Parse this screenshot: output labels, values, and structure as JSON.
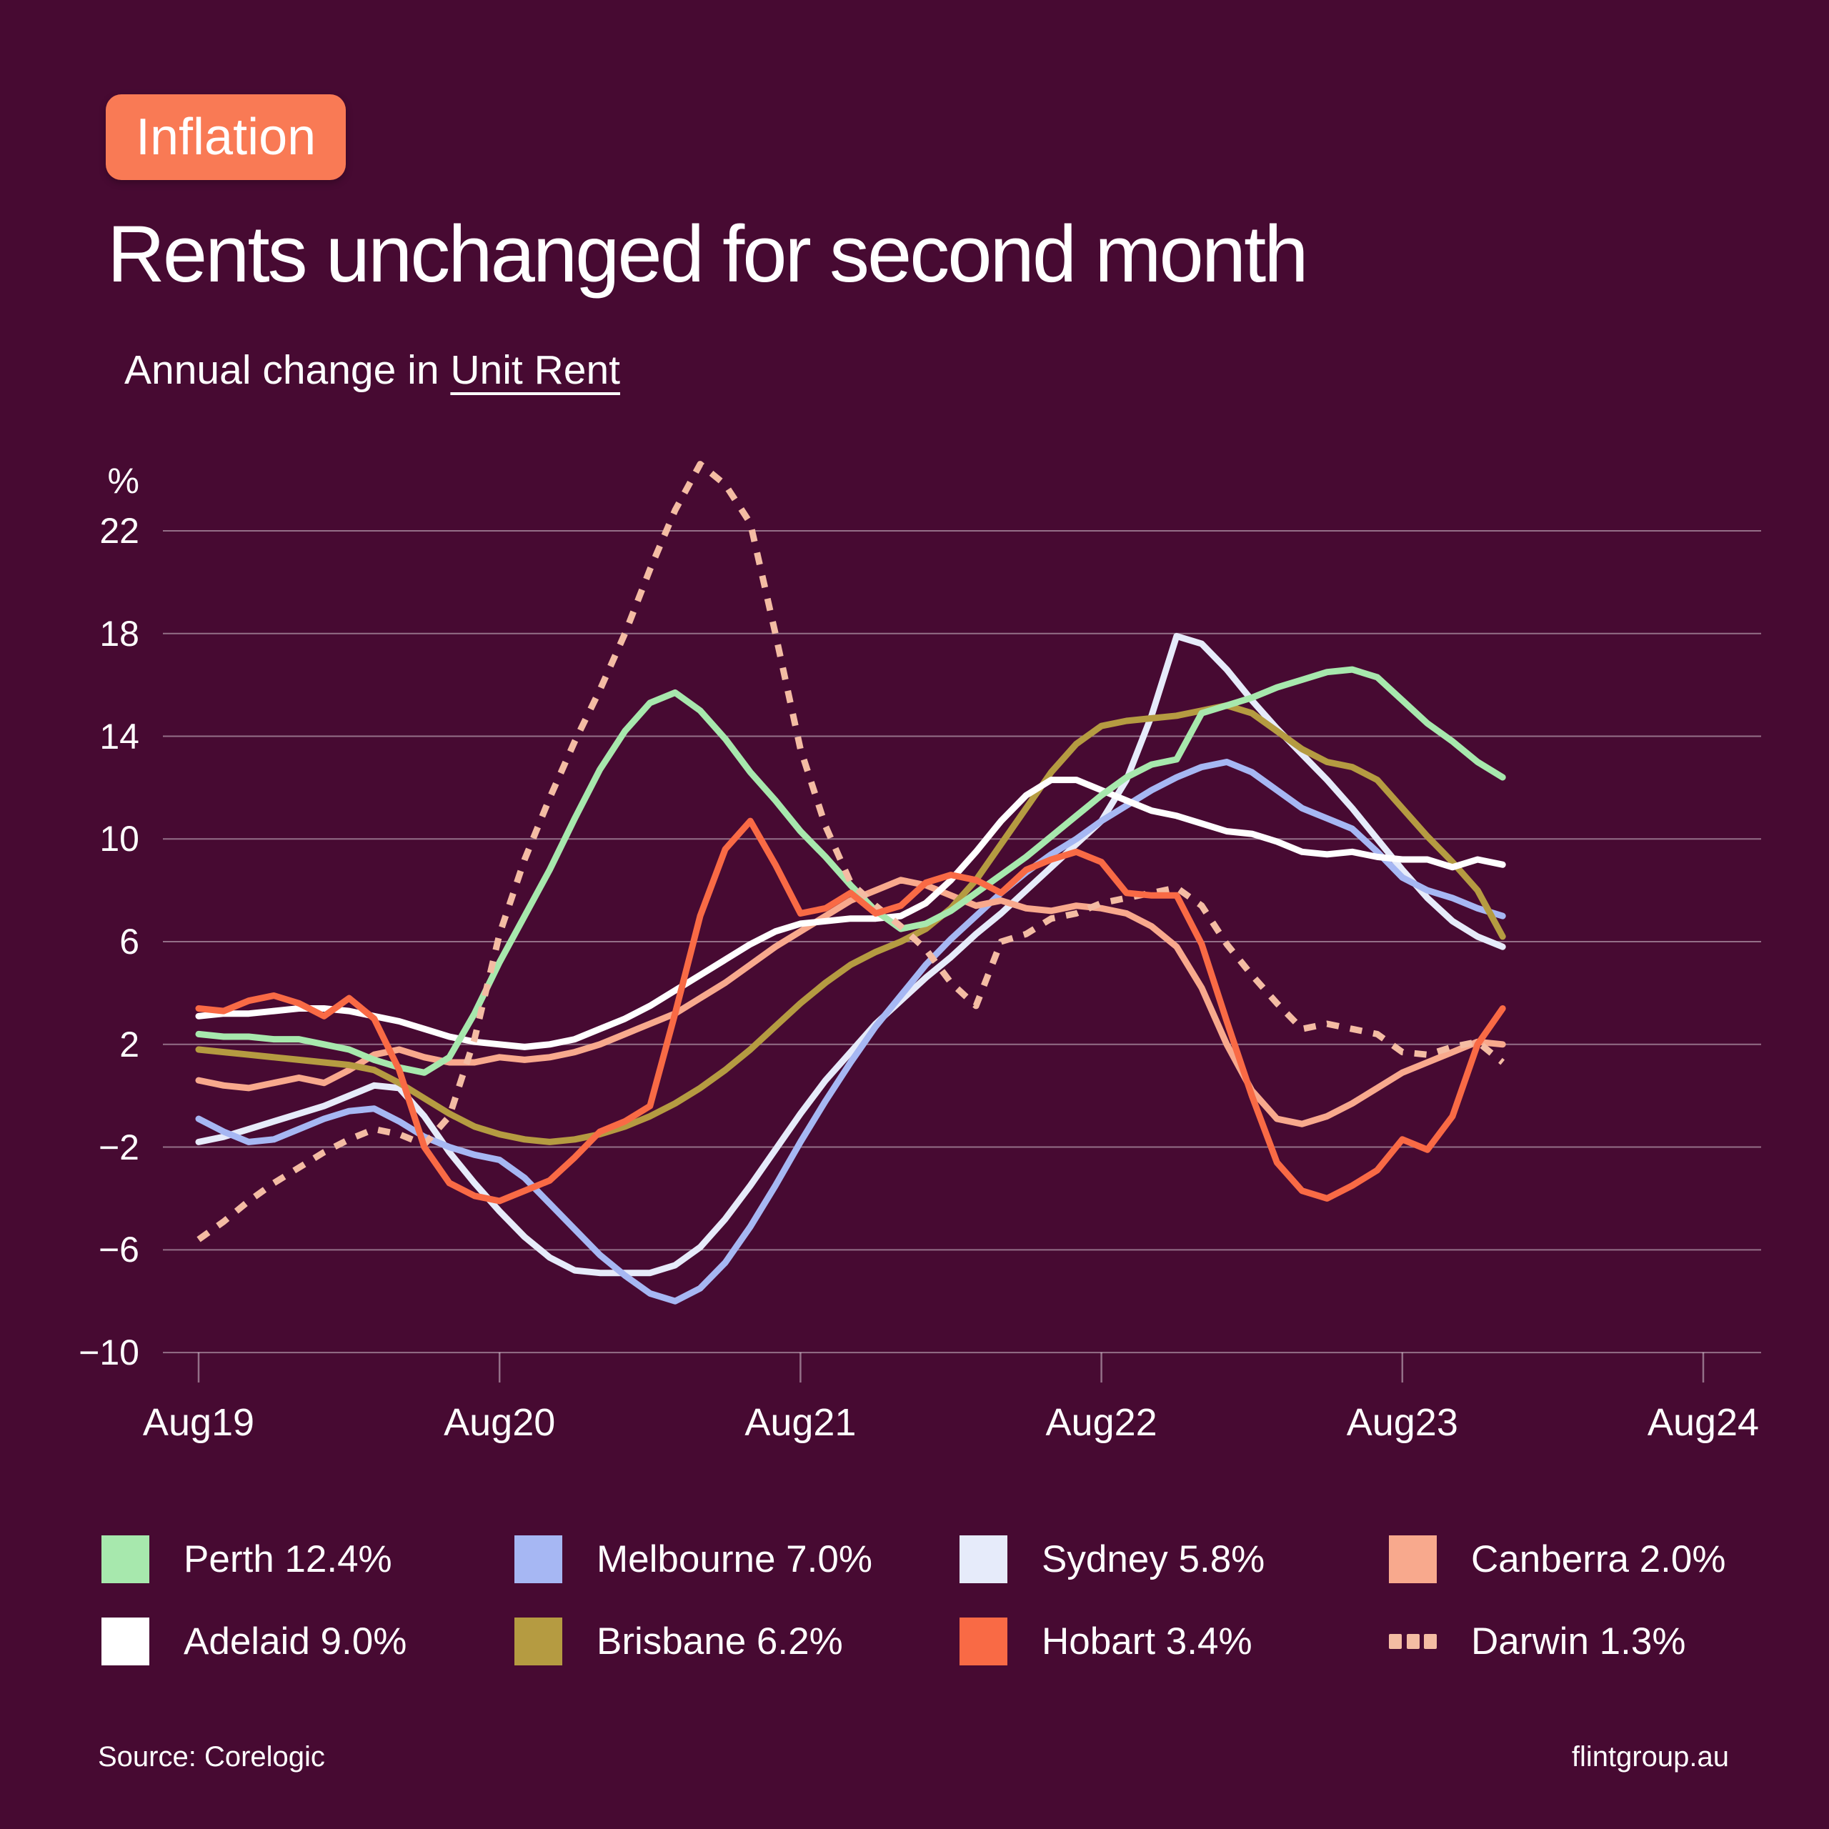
{
  "page": {
    "background": "#470A32",
    "accent": "#F97A55",
    "gridline_color": "rgba(255,255,255,0.42)"
  },
  "badge": {
    "label": "Inflation"
  },
  "header": {
    "title": "Rents unchanged for second month",
    "subtitle_prefix": "Annual change in ",
    "subtitle_underlined": "Unit Rent"
  },
  "footer": {
    "source": "Source: Corelogic",
    "site": "flintgroup.au"
  },
  "chart_data": {
    "type": "line",
    "title": "Annual change in Unit Rent",
    "xlabel": "",
    "ylabel": "%",
    "ylim": [
      -10,
      24.6
    ],
    "grid": "horizontal-only",
    "legend_position": "bottom",
    "y_tick_values": [
      22,
      18,
      14,
      10,
      6,
      2,
      -2,
      -6,
      -10
    ],
    "y_tick_labels": [
      "22",
      "18",
      "14",
      "10",
      "6",
      "2",
      "−2",
      "−6",
      "−10"
    ],
    "x_tick_labels": [
      "Aug19",
      "Aug20",
      "Aug21",
      "Aug22",
      "Aug23",
      "Aug24"
    ],
    "months": [
      "Aug19",
      "Sep19",
      "Oct19",
      "Nov19",
      "Dec19",
      "Jan20",
      "Feb20",
      "Mar20",
      "Apr20",
      "May20",
      "Jun20",
      "Jul20",
      "Aug20",
      "Sep20",
      "Oct20",
      "Nov20",
      "Dec20",
      "Jan21",
      "Feb21",
      "Mar21",
      "Apr21",
      "May21",
      "Jun21",
      "Jul21",
      "Aug21",
      "Sep21",
      "Oct21",
      "Nov21",
      "Dec21",
      "Jan22",
      "Feb22",
      "Mar22",
      "Apr22",
      "May22",
      "Jun22",
      "Jul22",
      "Aug22",
      "Sep22",
      "Oct22",
      "Nov22",
      "Dec22",
      "Jan23",
      "Feb23",
      "Mar23",
      "Apr23",
      "May23",
      "Jun23",
      "Jul23",
      "Aug23",
      "Sep23",
      "Oct23",
      "Nov23",
      "Dec23"
    ],
    "draw_order": [
      "sydney",
      "melbourne",
      "canberra",
      "brisbane",
      "adelaide",
      "perth",
      "darwin",
      "hobart"
    ],
    "series": [
      {
        "key": "perth",
        "name": "Perth",
        "current_value": "12.4%",
        "legend_label": "Perth 12.4%",
        "color": "#A7E8AD",
        "dashed": false,
        "values": [
          2.4,
          2.3,
          2.3,
          2.2,
          2.2,
          2.0,
          1.8,
          1.4,
          1.1,
          0.9,
          1.5,
          3.2,
          5.2,
          7.0,
          8.8,
          10.8,
          12.7,
          14.2,
          15.3,
          15.7,
          15.0,
          13.9,
          12.6,
          11.5,
          10.3,
          9.3,
          8.2,
          7.2,
          6.5,
          6.7,
          7.2,
          7.9,
          8.6,
          9.3,
          10.1,
          10.9,
          11.7,
          12.4,
          12.9,
          13.1,
          14.9,
          15.2,
          15.5,
          15.9,
          16.2,
          16.5,
          16.6,
          16.3,
          15.4,
          14.5,
          13.8,
          13.0,
          12.4
        ]
      },
      {
        "key": "melbourne",
        "name": "Melbourne",
        "current_value": "7.0%",
        "legend_label": "Melbourne 7.0%",
        "color": "#A6B7F3",
        "dashed": false,
        "values": [
          -0.9,
          -1.4,
          -1.8,
          -1.7,
          -1.3,
          -0.9,
          -0.6,
          -0.5,
          -1.0,
          -1.6,
          -2.0,
          -2.3,
          -2.5,
          -3.2,
          -4.2,
          -5.2,
          -6.2,
          -7.0,
          -7.7,
          -8.0,
          -7.5,
          -6.5,
          -5.1,
          -3.5,
          -1.8,
          -0.2,
          1.3,
          2.7,
          3.9,
          5.1,
          6.1,
          7.0,
          7.9,
          8.7,
          9.4,
          10.0,
          10.7,
          11.3,
          11.9,
          12.4,
          12.8,
          13.0,
          12.6,
          11.9,
          11.2,
          10.8,
          10.4,
          9.5,
          8.5,
          8.0,
          7.7,
          7.3,
          7.0
        ]
      },
      {
        "key": "sydney",
        "name": "Sydney",
        "current_value": "5.8%",
        "legend_label": "Sydney 5.8%",
        "color": "#E6EBFA",
        "dashed": false,
        "values": [
          -1.8,
          -1.6,
          -1.3,
          -1.0,
          -0.7,
          -0.4,
          0.0,
          0.4,
          0.3,
          -0.8,
          -2.2,
          -3.4,
          -4.5,
          -5.5,
          -6.3,
          -6.8,
          -6.9,
          -6.9,
          -6.9,
          -6.6,
          -5.9,
          -4.8,
          -3.5,
          -2.1,
          -0.7,
          0.6,
          1.7,
          2.8,
          3.7,
          4.6,
          5.4,
          6.3,
          7.1,
          8.0,
          8.9,
          9.8,
          10.7,
          12.3,
          14.8,
          17.9,
          17.6,
          16.6,
          15.4,
          14.3,
          13.3,
          12.3,
          11.2,
          10.0,
          8.8,
          7.7,
          6.8,
          6.2,
          5.8
        ]
      },
      {
        "key": "canberra",
        "name": "Canberra",
        "current_value": "2.0%",
        "legend_label": "Canberra 2.0%",
        "color": "#F8A98D",
        "dashed": false,
        "values": [
          0.6,
          0.4,
          0.3,
          0.5,
          0.7,
          0.5,
          1.0,
          1.6,
          1.8,
          1.5,
          1.3,
          1.3,
          1.5,
          1.4,
          1.5,
          1.7,
          2.0,
          2.4,
          2.8,
          3.2,
          3.8,
          4.4,
          5.1,
          5.8,
          6.4,
          7.0,
          7.6,
          8.0,
          8.4,
          8.2,
          7.8,
          7.4,
          7.6,
          7.3,
          7.2,
          7.4,
          7.3,
          7.1,
          6.6,
          5.8,
          4.2,
          2.0,
          0.2,
          -0.9,
          -1.1,
          -0.8,
          -0.3,
          0.3,
          0.9,
          1.3,
          1.7,
          2.1,
          2.0
        ]
      },
      {
        "key": "adelaide",
        "name": "Adelaid",
        "current_value": "9.0%",
        "legend_label": "Adelaid 9.0%",
        "color": "#FFFFFF",
        "dashed": false,
        "values": [
          3.1,
          3.2,
          3.2,
          3.3,
          3.4,
          3.4,
          3.3,
          3.1,
          2.9,
          2.6,
          2.3,
          2.1,
          2.0,
          1.9,
          2.0,
          2.2,
          2.6,
          3.0,
          3.5,
          4.1,
          4.7,
          5.3,
          5.9,
          6.4,
          6.7,
          6.8,
          6.9,
          6.9,
          7.0,
          7.5,
          8.4,
          9.5,
          10.7,
          11.7,
          12.3,
          12.3,
          11.9,
          11.5,
          11.1,
          10.9,
          10.6,
          10.3,
          10.2,
          9.9,
          9.5,
          9.4,
          9.5,
          9.3,
          9.2,
          9.2,
          8.9,
          9.2,
          9.0
        ]
      },
      {
        "key": "brisbane",
        "name": "Brisbane",
        "current_value": "6.2%",
        "legend_label": "Brisbane 6.2%",
        "color": "#B59B41",
        "dashed": false,
        "values": [
          1.8,
          1.7,
          1.6,
          1.5,
          1.4,
          1.3,
          1.2,
          1.0,
          0.5,
          -0.1,
          -0.7,
          -1.2,
          -1.5,
          -1.7,
          -1.8,
          -1.7,
          -1.5,
          -1.2,
          -0.8,
          -0.3,
          0.3,
          1.0,
          1.8,
          2.7,
          3.6,
          4.4,
          5.1,
          5.6,
          6.0,
          6.5,
          7.3,
          8.4,
          9.8,
          11.2,
          12.6,
          13.7,
          14.4,
          14.6,
          14.7,
          14.8,
          15.0,
          15.2,
          14.9,
          14.2,
          13.5,
          13.0,
          12.8,
          12.3,
          11.2,
          10.1,
          9.1,
          8.0,
          6.2
        ]
      },
      {
        "key": "hobart",
        "name": "Hobart",
        "current_value": "3.4%",
        "legend_label": "Hobart 3.4%",
        "color": "#F96A45",
        "dashed": false,
        "values": [
          3.4,
          3.3,
          3.7,
          3.9,
          3.6,
          3.1,
          3.8,
          3.0,
          1.0,
          -2.0,
          -3.4,
          -3.9,
          -4.1,
          -3.7,
          -3.3,
          -2.4,
          -1.4,
          -1.0,
          -0.4,
          3.2,
          7.0,
          9.6,
          10.7,
          9.0,
          7.1,
          7.3,
          7.9,
          7.1,
          7.4,
          8.3,
          8.6,
          8.4,
          7.9,
          8.8,
          9.2,
          9.5,
          9.1,
          7.9,
          7.8,
          7.8,
          5.9,
          2.9,
          0.0,
          -2.6,
          -3.7,
          -4.0,
          -3.5,
          -2.9,
          -1.7,
          -2.1,
          -0.8,
          2.0,
          3.4
        ]
      },
      {
        "key": "darwin",
        "name": "Darwin",
        "current_value": "1.3%",
        "legend_label": "Darwin 1.3%",
        "color": "#F4BCA3",
        "dashed": true,
        "values": [
          -5.6,
          -4.9,
          -4.1,
          -3.4,
          -2.8,
          -2.2,
          -1.7,
          -1.3,
          -1.5,
          -1.9,
          -0.8,
          2.2,
          6.3,
          9.2,
          11.6,
          13.8,
          15.8,
          18.0,
          20.5,
          22.8,
          24.6,
          23.8,
          22.3,
          18.0,
          13.5,
          10.5,
          8.3,
          7.4,
          6.6,
          5.7,
          4.4,
          3.5,
          6.0,
          6.3,
          6.9,
          7.1,
          7.5,
          7.7,
          7.9,
          8.1,
          7.4,
          5.9,
          4.7,
          3.6,
          2.6,
          2.8,
          2.6,
          2.4,
          1.7,
          1.6,
          1.9,
          2.1,
          1.3
        ]
      }
    ],
    "legend_display_order": [
      "perth",
      "melbourne",
      "sydney",
      "canberra",
      "adelaide",
      "brisbane",
      "hobart",
      "darwin"
    ]
  }
}
